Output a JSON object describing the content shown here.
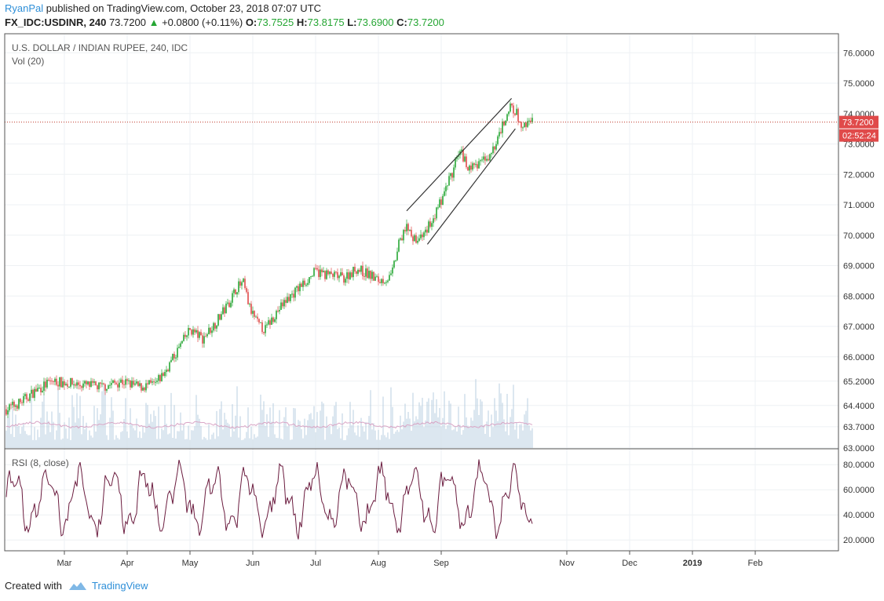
{
  "header": {
    "author": "RyanPal",
    "published": "published on TradingView.com, October 23, 2018 07:07 UTC",
    "symbol": "FX_IDC:USDINR, 240",
    "last": "73.7200",
    "change": "+0.0800 (+0.11%)",
    "o_label": "O:",
    "o_value": "73.7525",
    "h_label": "H:",
    "h_value": "73.8175",
    "l_label": "L:",
    "l_value": "73.6900",
    "c_label": "C:",
    "c_value": "73.7200"
  },
  "footer": {
    "created_with": "Created with",
    "brand": "TradingView"
  },
  "colors": {
    "up": "#26a634",
    "down": "#e04a4a",
    "price_line": "#c0392b",
    "volume": "#a9c3d9",
    "vol_ma": "#d9a6c6",
    "rsi": "#6b1c3f",
    "accent": "#2e8fd8"
  },
  "chart_data": [
    {
      "type": "candlestick",
      "title": "U.S. DOLLAR / INDIAN RUPEE, 240, IDC",
      "subtitle": "Vol (20)",
      "ylim": [
        63.0,
        76.6
      ],
      "y_ticks": [
        "76.0000",
        "75.0000",
        "74.0000",
        "73.0000",
        "72.0000",
        "71.0000",
        "70.0000",
        "69.0000",
        "68.0000",
        "67.0000",
        "66.0000",
        "65.2000",
        "64.4000",
        "63.7000",
        "63.0000"
      ],
      "y_tick_values": [
        76.0,
        75.0,
        74.0,
        73.0,
        72.0,
        71.0,
        70.0,
        69.0,
        68.0,
        67.0,
        66.0,
        65.2,
        64.4,
        63.7,
        63.0
      ],
      "x_labels": [
        "Mar",
        "Apr",
        "May",
        "Jun",
        "Jul",
        "Aug",
        "Sep",
        "Nov",
        "Dec",
        "2019",
        "Feb"
      ],
      "x_label_months": [
        2,
        3,
        4,
        5,
        6,
        7,
        8,
        10,
        11,
        12,
        13
      ],
      "last_price_label": "73.7200",
      "countdown_label": "02:52:24",
      "last_price": 73.72,
      "price_path": [
        {
          "m": 1.0,
          "p": 64.2
        },
        {
          "m": 1.3,
          "p": 64.5
        },
        {
          "m": 1.55,
          "p": 64.9
        },
        {
          "m": 1.8,
          "p": 65.2
        },
        {
          "m": 2.2,
          "p": 65.1
        },
        {
          "m": 2.6,
          "p": 65.0
        },
        {
          "m": 2.9,
          "p": 65.2
        },
        {
          "m": 3.2,
          "p": 65.0
        },
        {
          "m": 3.45,
          "p": 65.1
        },
        {
          "m": 3.6,
          "p": 65.5
        },
        {
          "m": 3.8,
          "p": 66.2
        },
        {
          "m": 4.0,
          "p": 66.9
        },
        {
          "m": 4.2,
          "p": 66.6
        },
        {
          "m": 4.4,
          "p": 67.1
        },
        {
          "m": 4.6,
          "p": 67.7
        },
        {
          "m": 4.75,
          "p": 68.3
        },
        {
          "m": 4.85,
          "p": 68.4
        },
        {
          "m": 4.95,
          "p": 67.6
        },
        {
          "m": 5.1,
          "p": 67.0
        },
        {
          "m": 5.2,
          "p": 66.9
        },
        {
          "m": 5.35,
          "p": 67.4
        },
        {
          "m": 5.55,
          "p": 67.9
        },
        {
          "m": 5.8,
          "p": 68.4
        },
        {
          "m": 6.0,
          "p": 68.8
        },
        {
          "m": 6.2,
          "p": 68.7
        },
        {
          "m": 6.45,
          "p": 68.6
        },
        {
          "m": 6.65,
          "p": 68.9
        },
        {
          "m": 6.85,
          "p": 68.7
        },
        {
          "m": 7.0,
          "p": 68.5
        },
        {
          "m": 7.2,
          "p": 68.6
        },
        {
          "m": 7.35,
          "p": 69.9
        },
        {
          "m": 7.45,
          "p": 70.3
        },
        {
          "m": 7.6,
          "p": 69.8
        },
        {
          "m": 7.75,
          "p": 70.1
        },
        {
          "m": 7.95,
          "p": 70.9
        },
        {
          "m": 8.15,
          "p": 71.9
        },
        {
          "m": 8.3,
          "p": 72.8
        },
        {
          "m": 8.45,
          "p": 72.2
        },
        {
          "m": 8.6,
          "p": 72.4
        },
        {
          "m": 8.8,
          "p": 72.7
        },
        {
          "m": 8.95,
          "p": 73.5
        },
        {
          "m": 9.1,
          "p": 74.3
        },
        {
          "m": 9.2,
          "p": 74.0
        },
        {
          "m": 9.3,
          "p": 73.5
        },
        {
          "m": 9.45,
          "p": 73.72
        }
      ],
      "channel_lines": [
        {
          "from": {
            "m": 7.45,
            "p": 70.8
          },
          "to": {
            "m": 9.12,
            "p": 74.5
          }
        },
        {
          "from": {
            "m": 7.78,
            "p": 69.7
          },
          "to": {
            "m": 9.18,
            "p": 73.5
          }
        }
      ]
    },
    {
      "type": "line",
      "title": "RSI (8, close)",
      "ylim": [
        12,
        92
      ],
      "y_ticks": [
        "80.0000",
        "60.0000",
        "40.0000",
        "20.0000"
      ],
      "y_tick_values": [
        80,
        60,
        40,
        20
      ]
    }
  ]
}
